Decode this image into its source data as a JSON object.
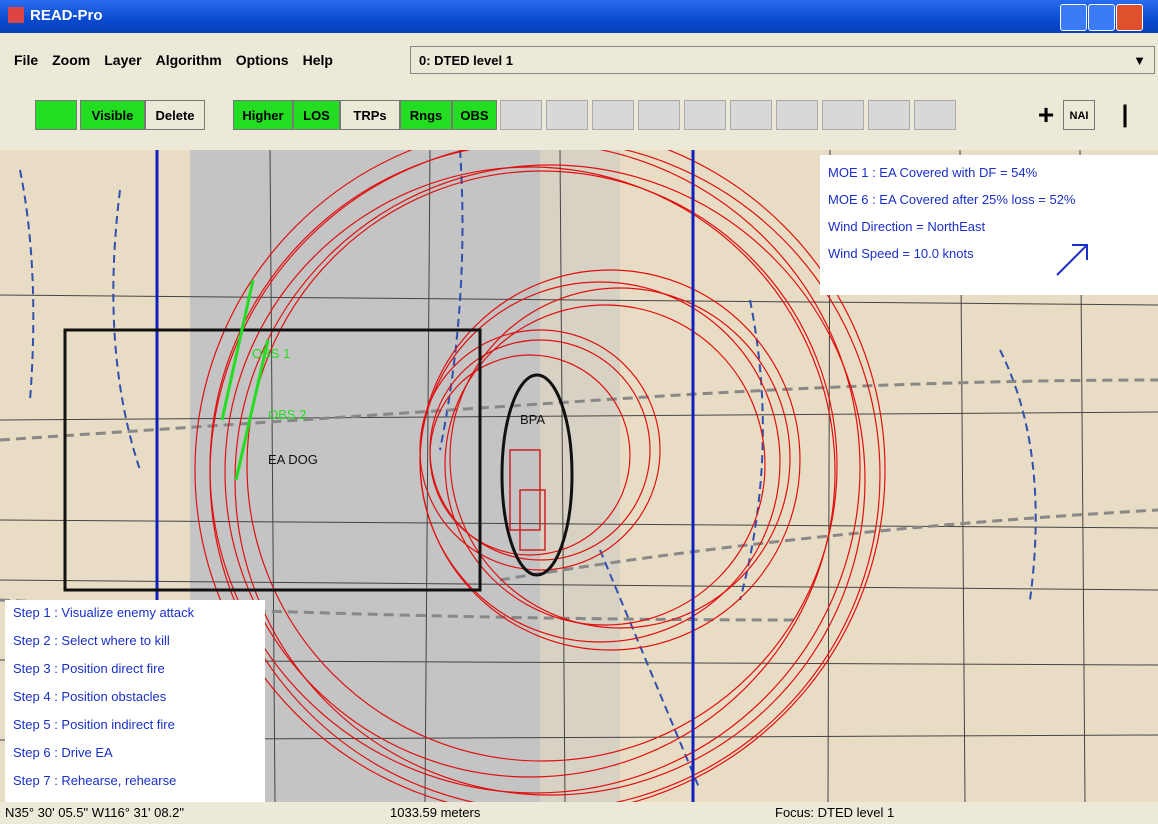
{
  "window": {
    "title": "READ-Pro"
  },
  "menu": {
    "items": [
      "File",
      "Zoom",
      "Layer",
      "Algorithm",
      "Options",
      "Help"
    ],
    "dropdown": "0: DTED level 1"
  },
  "toolbar": {
    "buttons": [
      "Visible",
      "Delete",
      "Higher",
      "LOS",
      "TRPs",
      "Rngs",
      "OBS",
      "NAI"
    ]
  },
  "map": {
    "labels": [
      "OBS 1",
      "OBS 2",
      "EA DOG",
      "BPA"
    ],
    "moe": [
      "MOE 1 : EA Covered with DF =  54%",
      "MOE 6 : EA Covered after 25% loss =  52%",
      "Wind Direction = NorthEast",
      "Wind Speed = 10.0 knots"
    ],
    "steps": [
      "Step 1 :  Visualize enemy attack",
      "Step 2 :  Select where to kill",
      "Step 3 :  Position direct fire",
      "Step 4 :  Position obstacles",
      "Step 5 :  Position indirect fire",
      "Step 6 :  Drive EA",
      "Step 7 :  Rehearse, rehearse"
    ]
  },
  "status": {
    "coords": "N35° 30' 05.5\"  W116° 31' 08.2\"",
    "distance": "1033.59 meters",
    "focus": "Focus:  DTED level 1"
  }
}
